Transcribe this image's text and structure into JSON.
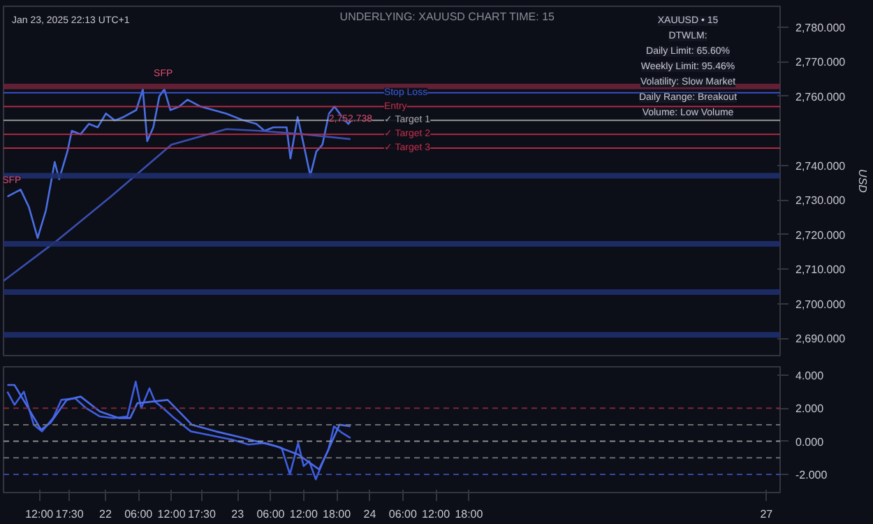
{
  "chart_data": [
    {
      "type": "line",
      "title": "UNDERLYING: XAUUSD   CHART TIME: 15",
      "subtitle": "Jan 23, 2025 22:13 UTC+1",
      "ylabel": "USD",
      "xlim": [
        "2025-01-21T05:30",
        "2025-01-27T02:30"
      ],
      "ylim": [
        2685,
        2786
      ],
      "yticks": [
        {
          "value": 2690,
          "label": "2,690.000"
        },
        {
          "value": 2700,
          "label": "2,700.000"
        },
        {
          "value": 2710,
          "label": "2,710.000"
        },
        {
          "value": 2720,
          "label": "2,720.000"
        },
        {
          "value": 2730,
          "label": "2,730.000"
        },
        {
          "value": 2740,
          "label": "2,740.000"
        },
        {
          "value": 2760,
          "label": "2,760.000"
        },
        {
          "value": 2770,
          "label": "2,770.000"
        },
        {
          "value": 2780,
          "label": "2,780.000"
        }
      ],
      "tick_labels": "y",
      "grid": false,
      "series": [
        {
          "color": "#4a6fe3",
          "x": [
            "2025-01-21T06:12",
            "2025-01-21T08:36",
            "2025-01-21T10:06",
            "2025-01-21T11:42",
            "2025-01-21T13:12",
            "2025-01-21T14:48",
            "2025-01-21T15:36",
            "2025-01-21T17:06",
            "2025-01-21T17:54",
            "2025-01-21T19:30",
            "2025-01-21T21:00",
            "2025-01-21T22:36",
            "2025-01-22T00:06",
            "2025-01-22T01:42",
            "2025-01-22T03:18",
            "2025-01-22T05:36",
            "2025-01-22T06:48",
            "2025-01-22T07:36",
            "2025-01-22T08:42",
            "2025-01-22T09:48",
            "2025-01-22T10:42",
            "2025-01-22T11:48",
            "2025-01-22T13:24",
            "2025-01-22T14:54",
            "2025-01-22T17:18",
            "2025-01-22T19:36",
            "2025-01-22T21:54",
            "2025-01-23T01:06",
            "2025-01-23T03:24",
            "2025-01-23T04:54",
            "2025-01-23T06:30",
            "2025-01-23T08:54",
            "2025-01-23T09:36",
            "2025-01-23T10:54",
            "2025-01-23T12:00",
            "2025-01-23T13:12",
            "2025-01-23T14:18",
            "2025-01-23T15:24",
            "2025-01-23T16:36",
            "2025-01-23T17:36",
            "2025-01-23T19:00",
            "2025-01-23T20:06",
            "2025-01-23T20:30"
          ],
          "values": [
            2731,
            2733,
            2728,
            2719,
            2727,
            2741,
            2736,
            2744,
            2750,
            2749,
            2752,
            2751,
            2755,
            2753,
            2754,
            2756,
            2762,
            2747,
            2751,
            2760,
            2762,
            2756,
            2757,
            2759,
            2757,
            2756,
            2755,
            2753,
            2752,
            2750,
            2751,
            2751,
            2742,
            2754,
            2746,
            2737,
            2744,
            2746,
            2755,
            2757,
            2754,
            2752,
            2752.7
          ]
        },
        {
          "color": "#3a4fb0",
          "x": [
            "2025-01-21T05:30",
            "2025-01-21T15:00",
            "2025-01-22T01:00",
            "2025-01-22T12:00",
            "2025-01-22T22:00",
            "2025-01-23T04:00",
            "2025-01-23T12:00",
            "2025-01-23T20:30"
          ],
          "values": [
            2706.6,
            2718,
            2731,
            2746,
            2750.5,
            2750,
            2749,
            2747.6
          ]
        }
      ],
      "ref_lines": [
        {
          "axis": "y",
          "value": 2762.8,
          "color": "#6b2238"
        },
        {
          "axis": "y",
          "value": 2737,
          "color": "#1f2f6e"
        },
        {
          "axis": "y",
          "value": 2717.3,
          "color": "#1f2f6e"
        },
        {
          "axis": "y",
          "value": 2703.4,
          "color": "#1f2f6e"
        },
        {
          "axis": "y",
          "value": 2691,
          "color": "#1f2f6e"
        },
        {
          "axis": "y",
          "value": 2761,
          "label": "Stop Loss",
          "color": "#3a5bd8"
        },
        {
          "axis": "y",
          "value": 2757,
          "label": "Entry",
          "color": "#c0304a"
        },
        {
          "axis": "y",
          "value": 2753,
          "label": "✓ Target 1",
          "color": "#aaaaaa"
        },
        {
          "axis": "y",
          "value": 2749,
          "label": "✓ Target 2",
          "color": "#c0304a"
        },
        {
          "axis": "y",
          "value": 2745,
          "label": "✓ Target 3",
          "color": "#c0304a"
        }
      ],
      "annotations": [
        "XAUUSD • 15",
        "DTWLM:",
        "Daily Limit: 65.60%",
        "Weekly Limit: 95.46%",
        "Volatility: Slow Market",
        "Daily Range: Breakout",
        "Volume: Low Volume",
        {
          "text": "SFP",
          "x": "2025-01-21T07:00",
          "y": 2734
        },
        {
          "text": "SFP",
          "x": "2025-01-22T10:30",
          "y": 2765
        },
        {
          "text": "2,752.738",
          "x": "2025-01-23T20:30",
          "y": 2752.7
        }
      ]
    },
    {
      "type": "line",
      "xlim": [
        "2025-01-21T05:30",
        "2025-01-27T02:30"
      ],
      "ylim": [
        -3.1,
        4.5
      ],
      "xticks": [
        {
          "value": "2025-01-21T12:00",
          "label": "12:00"
        },
        {
          "value": "2025-01-21T17:30",
          "label": "17:30"
        },
        {
          "value": "2025-01-22",
          "label": "22"
        },
        {
          "value": "2025-01-22T06:00",
          "label": "06:00"
        },
        {
          "value": "2025-01-22T12:00",
          "label": "12:00"
        },
        {
          "value": "2025-01-22T17:30",
          "label": "17:30"
        },
        {
          "value": "2025-01-23",
          "label": "23"
        },
        {
          "value": "2025-01-23T06:00",
          "label": "06:00"
        },
        {
          "value": "2025-01-23T12:00",
          "label": "12:00"
        },
        {
          "value": "2025-01-23T18:00",
          "label": "18:00"
        },
        {
          "value": "2025-01-24",
          "label": "24"
        },
        {
          "value": "2025-01-24T06:00",
          "label": "06:00"
        },
        {
          "value": "2025-01-24T12:00",
          "label": "12:00"
        },
        {
          "value": "2025-01-24T18:00",
          "label": "18:00"
        },
        {
          "value": "2025-01-27",
          "label": "27"
        }
      ],
      "yticks": [
        {
          "value": -2,
          "label": "-2.000"
        },
        {
          "value": 0,
          "label": "0.000"
        },
        {
          "value": 2,
          "label": "2.000"
        },
        {
          "value": 4,
          "label": "4.000"
        }
      ],
      "grid": false,
      "series": [
        {
          "color": "#3f5fe0",
          "x": [
            "2025-01-21T06:12",
            "2025-01-21T07:30",
            "2025-01-21T09:12",
            "2025-01-21T11:00",
            "2025-01-21T12:30",
            "2025-01-21T14:30",
            "2025-01-21T16:00",
            "2025-01-21T18:30",
            "2025-01-21T20:30",
            "2025-01-21T23:00",
            "2025-01-22T01:30",
            "2025-01-22T04:00",
            "2025-01-22T05:30",
            "2025-01-22T06:30",
            "2025-01-22T08:00",
            "2025-01-22T09:00",
            "2025-01-22T10:30",
            "2025-01-22T12:30",
            "2025-01-22T14:00",
            "2025-01-22T15:30",
            "2025-01-22T17:00",
            "2025-01-22T20:00",
            "2025-01-22T23:00",
            "2025-01-23T02:00",
            "2025-01-23T05:00",
            "2025-01-23T08:00",
            "2025-01-23T09:30",
            "2025-01-23T11:00",
            "2025-01-23T12:00",
            "2025-01-23T13:00",
            "2025-01-23T14:12",
            "2025-01-23T15:18",
            "2025-01-23T16:30",
            "2025-01-23T17:30",
            "2025-01-23T19:00",
            "2025-01-23T20:30"
          ],
          "values": [
            3.0,
            2.2,
            3.0,
            1.0,
            0.6,
            1.4,
            2.5,
            2.6,
            2.0,
            1.5,
            1.4,
            1.5,
            3.6,
            2.0,
            3.2,
            2.4,
            2.0,
            1.4,
            1.0,
            0.6,
            0.5,
            0.3,
            0.1,
            -0.2,
            -0.1,
            -0.4,
            -2.0,
            -0.1,
            -1.5,
            -1.2,
            -2.3,
            -1.4,
            -0.5,
            0.9,
            0.5,
            0.2
          ]
        },
        {
          "color": "#4a6ae8",
          "x": [
            "2025-01-21T06:12",
            "2025-01-21T07:30",
            "2025-01-21T10:00",
            "2025-01-21T12:18",
            "2025-01-21T14:00",
            "2025-01-21T17:00",
            "2025-01-21T19:30",
            "2025-01-21T23:00",
            "2025-01-22T02:30",
            "2025-01-22T04:30",
            "2025-01-22T05:48",
            "2025-01-22T11:18",
            "2025-01-22T15:42",
            "2025-01-22T20:00",
            "2025-01-23T01:00",
            "2025-01-23T07:00",
            "2025-01-23T11:00",
            "2025-01-23T14:48",
            "2025-01-23T16:30",
            "2025-01-23T18:30",
            "2025-01-23T20:30"
          ],
          "values": [
            3.4,
            3.4,
            2.0,
            0.7,
            1.1,
            2.5,
            2.7,
            1.8,
            1.4,
            1.4,
            2.3,
            2.5,
            1.0,
            0.6,
            0.2,
            -0.3,
            -0.8,
            -1.7,
            -0.5,
            1.0,
            0.9
          ]
        }
      ],
      "ref_lines": [
        {
          "axis": "y",
          "value": 2,
          "color": "#8a2a3a",
          "line_style": "dashed"
        },
        {
          "axis": "y",
          "value": 1,
          "color": "#777777",
          "line_style": "dashed"
        },
        {
          "axis": "y",
          "value": 0,
          "color": "#999999",
          "line_style": "dashed"
        },
        {
          "axis": "y",
          "value": -1,
          "color": "#777777",
          "line_style": "dashed"
        },
        {
          "axis": "y",
          "value": -2,
          "color": "#3a4fb0",
          "line_style": "dashed"
        }
      ]
    }
  ]
}
